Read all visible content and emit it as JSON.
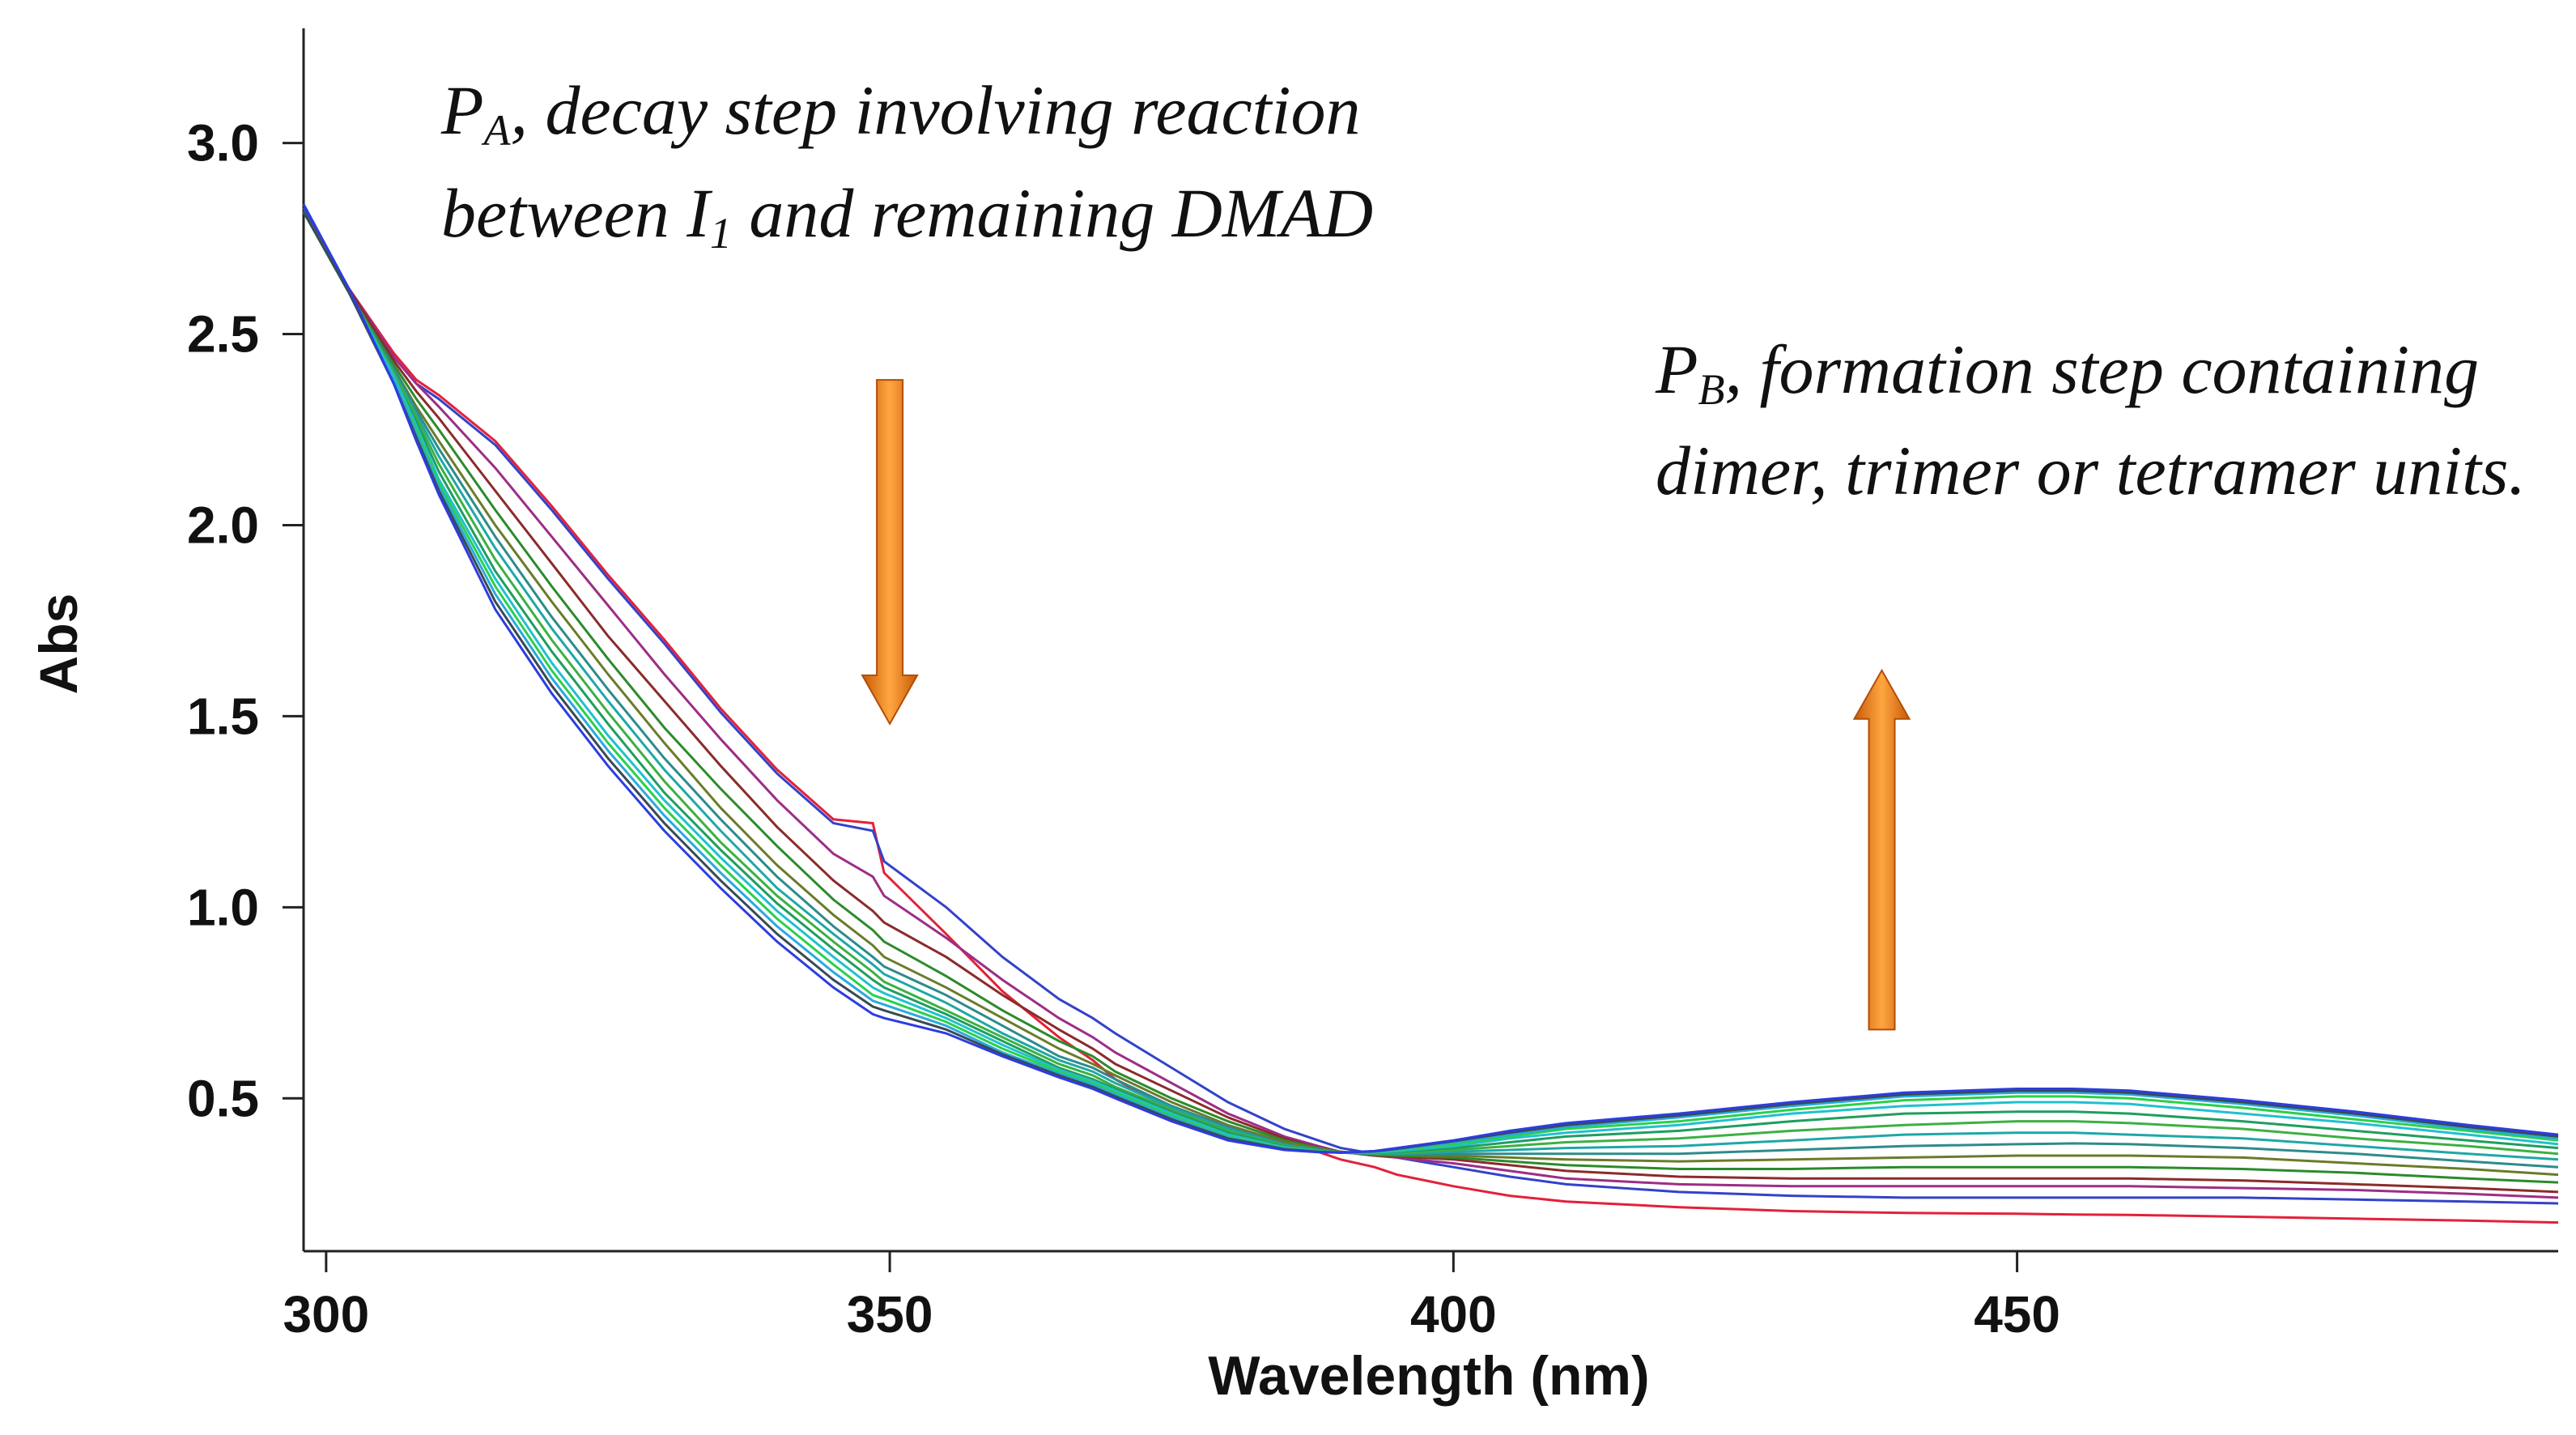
{
  "chart_data": {
    "type": "line",
    "xlabel": "Wavelength (nm)",
    "ylabel": "Abs",
    "xlim": [
      298,
      498
    ],
    "ylim": [
      0.1,
      3.3
    ],
    "xticks": [
      300,
      350,
      400,
      450
    ],
    "xtick_labels": [
      "300",
      "350",
      "400",
      "450"
    ],
    "yticks": [
      0.5,
      1.0,
      1.5,
      2.0,
      2.5,
      3.0
    ],
    "ytick_labels": [
      "0.5",
      "1.0",
      "1.5",
      "2.0",
      "2.5",
      "3.0"
    ],
    "grid": false,
    "annotations": [
      {
        "name": "annotation-pa",
        "lines": [
          {
            "parts": [
              {
                "t": "P"
              },
              {
                "t": "A",
                "sub": true
              },
              {
                "t": ", decay step involving reaction"
              }
            ]
          },
          {
            "parts": [
              {
                "t": "between I"
              },
              {
                "t": "1",
                "sub": true
              },
              {
                "t": " and remaining DMAD"
              }
            ]
          }
        ]
      },
      {
        "name": "annotation-pb",
        "lines": [
          {
            "parts": [
              {
                "t": "P"
              },
              {
                "t": "B",
                "sub": true
              },
              {
                "t": ", formation step containing"
              }
            ]
          },
          {
            "parts": [
              {
                "t": "dimer, trimer or tetramer units."
              }
            ]
          }
        ]
      }
    ],
    "arrows": [
      {
        "name": "decay-arrow",
        "direction": "down",
        "x": 350,
        "y_from": 2.38,
        "y_to": 1.48
      },
      {
        "name": "formation-arrow",
        "direction": "up",
        "x": 438,
        "y_from": 0.68,
        "y_to": 1.62
      }
    ],
    "x": [
      298,
      302,
      306,
      308,
      310,
      315,
      320,
      325,
      330,
      335,
      340,
      345,
      348.5,
      349.5,
      355,
      360,
      365,
      368,
      370,
      375,
      380,
      385,
      388,
      390,
      393,
      395,
      400,
      405,
      410,
      420,
      430,
      440,
      450,
      455,
      460,
      470,
      480,
      490,
      498
    ],
    "series": [
      {
        "name": "t0",
        "color": "#e3213a",
        "values": [
          2.82,
          2.62,
          2.45,
          2.38,
          2.34,
          2.22,
          2.05,
          1.87,
          1.7,
          1.52,
          1.36,
          1.23,
          1.22,
          1.09,
          0.93,
          0.78,
          0.66,
          0.6,
          0.55,
          0.47,
          0.42,
          0.38,
          0.36,
          0.34,
          0.32,
          0.3,
          0.27,
          0.245,
          0.23,
          0.215,
          0.205,
          0.2,
          0.198,
          0.196,
          0.195,
          0.19,
          0.185,
          0.18,
          0.175
        ]
      },
      {
        "name": "t1",
        "color": "#3342c9",
        "values": [
          2.83,
          2.62,
          2.44,
          2.37,
          2.33,
          2.21,
          2.04,
          1.86,
          1.69,
          1.51,
          1.35,
          1.22,
          1.2,
          1.12,
          1.0,
          0.87,
          0.76,
          0.71,
          0.67,
          0.58,
          0.49,
          0.42,
          0.39,
          0.37,
          0.355,
          0.345,
          0.32,
          0.295,
          0.275,
          0.255,
          0.245,
          0.24,
          0.24,
          0.24,
          0.24,
          0.24,
          0.235,
          0.23,
          0.225
        ]
      },
      {
        "name": "t2",
        "color": "#9c2e86",
        "values": [
          2.82,
          2.62,
          2.44,
          2.37,
          2.31,
          2.15,
          1.97,
          1.79,
          1.61,
          1.44,
          1.28,
          1.14,
          1.08,
          1.03,
          0.92,
          0.81,
          0.71,
          0.66,
          0.62,
          0.54,
          0.46,
          0.4,
          0.375,
          0.36,
          0.35,
          0.345,
          0.33,
          0.31,
          0.29,
          0.275,
          0.27,
          0.27,
          0.27,
          0.27,
          0.27,
          0.265,
          0.26,
          0.25,
          0.24
        ]
      },
      {
        "name": "t3",
        "color": "#8b2b2b",
        "values": [
          2.82,
          2.62,
          2.43,
          2.35,
          2.28,
          2.09,
          1.9,
          1.71,
          1.54,
          1.37,
          1.21,
          1.07,
          0.99,
          0.96,
          0.87,
          0.77,
          0.68,
          0.63,
          0.59,
          0.52,
          0.45,
          0.395,
          0.37,
          0.36,
          0.35,
          0.348,
          0.34,
          0.325,
          0.31,
          0.295,
          0.29,
          0.29,
          0.29,
          0.29,
          0.29,
          0.285,
          0.275,
          0.265,
          0.255
        ]
      },
      {
        "name": "t4",
        "color": "#2b8b2b",
        "values": [
          2.82,
          2.61,
          2.42,
          2.33,
          2.25,
          2.04,
          1.84,
          1.65,
          1.47,
          1.31,
          1.16,
          1.02,
          0.94,
          0.91,
          0.82,
          0.73,
          0.65,
          0.61,
          0.57,
          0.5,
          0.44,
          0.39,
          0.37,
          0.36,
          0.352,
          0.35,
          0.345,
          0.335,
          0.325,
          0.315,
          0.315,
          0.32,
          0.32,
          0.32,
          0.32,
          0.315,
          0.305,
          0.29,
          0.28
        ]
      },
      {
        "name": "t5",
        "color": "#6b7b2b",
        "values": [
          2.82,
          2.61,
          2.41,
          2.31,
          2.22,
          2.0,
          1.8,
          1.61,
          1.43,
          1.26,
          1.11,
          0.98,
          0.9,
          0.87,
          0.79,
          0.71,
          0.63,
          0.59,
          0.56,
          0.49,
          0.43,
          0.385,
          0.368,
          0.36,
          0.354,
          0.352,
          0.35,
          0.345,
          0.34,
          0.335,
          0.34,
          0.345,
          0.35,
          0.35,
          0.35,
          0.345,
          0.33,
          0.315,
          0.3
        ]
      },
      {
        "name": "t6",
        "color": "#2e8b8b",
        "values": [
          2.82,
          2.61,
          2.41,
          2.3,
          2.2,
          1.97,
          1.76,
          1.57,
          1.39,
          1.23,
          1.08,
          0.95,
          0.87,
          0.845,
          0.77,
          0.69,
          0.61,
          0.58,
          0.55,
          0.48,
          0.425,
          0.38,
          0.366,
          0.358,
          0.354,
          0.353,
          0.355,
          0.355,
          0.355,
          0.355,
          0.365,
          0.375,
          0.38,
          0.382,
          0.38,
          0.37,
          0.355,
          0.335,
          0.32
        ]
      },
      {
        "name": "t7",
        "color": "#1fa7a7",
        "values": [
          2.82,
          2.61,
          2.4,
          2.29,
          2.18,
          1.94,
          1.73,
          1.54,
          1.36,
          1.2,
          1.05,
          0.93,
          0.85,
          0.825,
          0.75,
          0.67,
          0.6,
          0.57,
          0.54,
          0.475,
          0.42,
          0.378,
          0.365,
          0.358,
          0.355,
          0.355,
          0.36,
          0.365,
          0.37,
          0.375,
          0.39,
          0.405,
          0.41,
          0.41,
          0.405,
          0.395,
          0.375,
          0.355,
          0.34
        ]
      },
      {
        "name": "t8",
        "color": "#3cb043",
        "values": [
          2.82,
          2.61,
          2.4,
          2.28,
          2.16,
          1.91,
          1.7,
          1.51,
          1.33,
          1.17,
          1.03,
          0.91,
          0.83,
          0.805,
          0.73,
          0.66,
          0.59,
          0.56,
          0.53,
          0.47,
          0.415,
          0.376,
          0.364,
          0.358,
          0.356,
          0.357,
          0.365,
          0.375,
          0.385,
          0.395,
          0.415,
          0.43,
          0.44,
          0.44,
          0.435,
          0.42,
          0.395,
          0.375,
          0.355
        ]
      },
      {
        "name": "t9",
        "color": "#1f9e5f",
        "values": [
          2.82,
          2.61,
          2.39,
          2.27,
          2.14,
          1.88,
          1.67,
          1.48,
          1.3,
          1.15,
          1.01,
          0.89,
          0.81,
          0.79,
          0.72,
          0.65,
          0.58,
          0.55,
          0.525,
          0.465,
          0.41,
          0.374,
          0.363,
          0.358,
          0.357,
          0.36,
          0.37,
          0.385,
          0.4,
          0.415,
          0.44,
          0.46,
          0.465,
          0.465,
          0.46,
          0.44,
          0.415,
          0.39,
          0.37
        ]
      },
      {
        "name": "t10",
        "color": "#20c0d0",
        "values": [
          2.82,
          2.61,
          2.39,
          2.26,
          2.12,
          1.86,
          1.64,
          1.45,
          1.28,
          1.13,
          0.99,
          0.87,
          0.79,
          0.775,
          0.71,
          0.64,
          0.575,
          0.545,
          0.52,
          0.46,
          0.405,
          0.372,
          0.362,
          0.358,
          0.358,
          0.362,
          0.375,
          0.395,
          0.41,
          0.43,
          0.46,
          0.48,
          0.49,
          0.49,
          0.485,
          0.46,
          0.435,
          0.405,
          0.38
        ]
      },
      {
        "name": "t11",
        "color": "#2bd04a",
        "values": [
          2.82,
          2.61,
          2.38,
          2.25,
          2.11,
          1.84,
          1.62,
          1.43,
          1.26,
          1.11,
          0.97,
          0.85,
          0.77,
          0.76,
          0.7,
          0.63,
          0.57,
          0.54,
          0.515,
          0.455,
          0.4,
          0.37,
          0.361,
          0.358,
          0.359,
          0.364,
          0.38,
          0.4,
          0.42,
          0.44,
          0.47,
          0.495,
          0.505,
          0.505,
          0.5,
          0.475,
          0.445,
          0.415,
          0.39
        ]
      },
      {
        "name": "t12",
        "color": "#2aa9e0",
        "values": [
          2.82,
          2.61,
          2.38,
          2.24,
          2.1,
          1.82,
          1.6,
          1.41,
          1.24,
          1.09,
          0.95,
          0.83,
          0.755,
          0.745,
          0.69,
          0.62,
          0.565,
          0.535,
          0.51,
          0.45,
          0.398,
          0.368,
          0.36,
          0.358,
          0.36,
          0.366,
          0.385,
          0.405,
          0.425,
          0.45,
          0.48,
          0.505,
          0.515,
          0.515,
          0.51,
          0.485,
          0.455,
          0.42,
          0.395
        ]
      },
      {
        "name": "t13",
        "color": "#3a4a52",
        "values": [
          2.82,
          2.61,
          2.37,
          2.23,
          2.09,
          1.8,
          1.58,
          1.39,
          1.22,
          1.07,
          0.93,
          0.81,
          0.74,
          0.73,
          0.68,
          0.615,
          0.56,
          0.53,
          0.505,
          0.445,
          0.395,
          0.367,
          0.36,
          0.358,
          0.361,
          0.368,
          0.388,
          0.41,
          0.43,
          0.455,
          0.485,
          0.51,
          0.52,
          0.52,
          0.515,
          0.49,
          0.46,
          0.425,
          0.4
        ]
      },
      {
        "name": "t14",
        "color": "#2c3de0",
        "values": [
          2.84,
          2.62,
          2.37,
          2.22,
          2.08,
          1.78,
          1.56,
          1.37,
          1.2,
          1.05,
          0.91,
          0.79,
          0.72,
          0.71,
          0.67,
          0.61,
          0.555,
          0.525,
          0.5,
          0.44,
          0.39,
          0.365,
          0.359,
          0.358,
          0.362,
          0.37,
          0.39,
          0.415,
          0.435,
          0.46,
          0.49,
          0.515,
          0.525,
          0.525,
          0.52,
          0.495,
          0.465,
          0.43,
          0.405
        ]
      }
    ]
  }
}
